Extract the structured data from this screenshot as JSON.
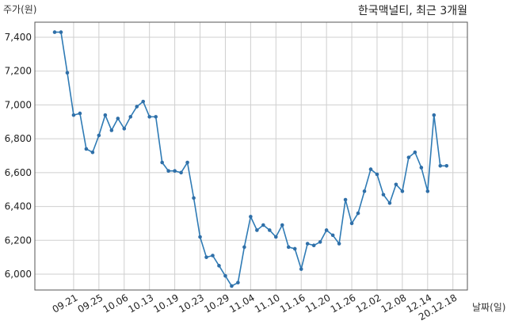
{
  "chart_data": {
    "type": "line",
    "title": "한국맥널티, 최근 3개월",
    "ylabel": "주가(원)",
    "xlabel": "날짜(일)",
    "ylim": [
      5880,
      7500
    ],
    "yticks": [
      6000,
      6200,
      6400,
      6600,
      6800,
      7000,
      7200,
      7400
    ],
    "ytick_labels": [
      "6,000",
      "6,200",
      "6,400",
      "6,600",
      "6,800",
      "7,000",
      "7,200",
      "7,400"
    ],
    "grid": true,
    "xtick_labels": [
      "09.21",
      "09.25",
      "10.06",
      "10.13",
      "10.19",
      "10.23",
      "10.29",
      "11.04",
      "11.10",
      "11.16",
      "11.20",
      "11.26",
      "12.02",
      "12.08",
      "12.14",
      "20.12.18"
    ],
    "xtick_index": [
      3,
      7,
      11,
      15,
      19,
      23,
      27,
      31,
      35,
      39,
      43,
      47,
      51,
      55,
      59,
      63
    ],
    "values": [
      7430,
      7430,
      7190,
      6940,
      6950,
      6740,
      6720,
      6820,
      6940,
      6850,
      6920,
      6860,
      6930,
      6990,
      7020,
      6930,
      6930,
      6660,
      6610,
      6610,
      6600,
      6660,
      6450,
      6220,
      6100,
      6110,
      6050,
      5990,
      5930,
      5950,
      6160,
      6340,
      6260,
      6290,
      6260,
      6220,
      6290,
      6160,
      6150,
      6030,
      6180,
      6170,
      6190,
      6260,
      6230,
      6180,
      6440,
      6300,
      6360,
      6490,
      6620,
      6590,
      6470,
      6420,
      6530,
      6490,
      6690,
      6720,
      6630,
      6490,
      6940,
      6640,
      6640
    ]
  }
}
